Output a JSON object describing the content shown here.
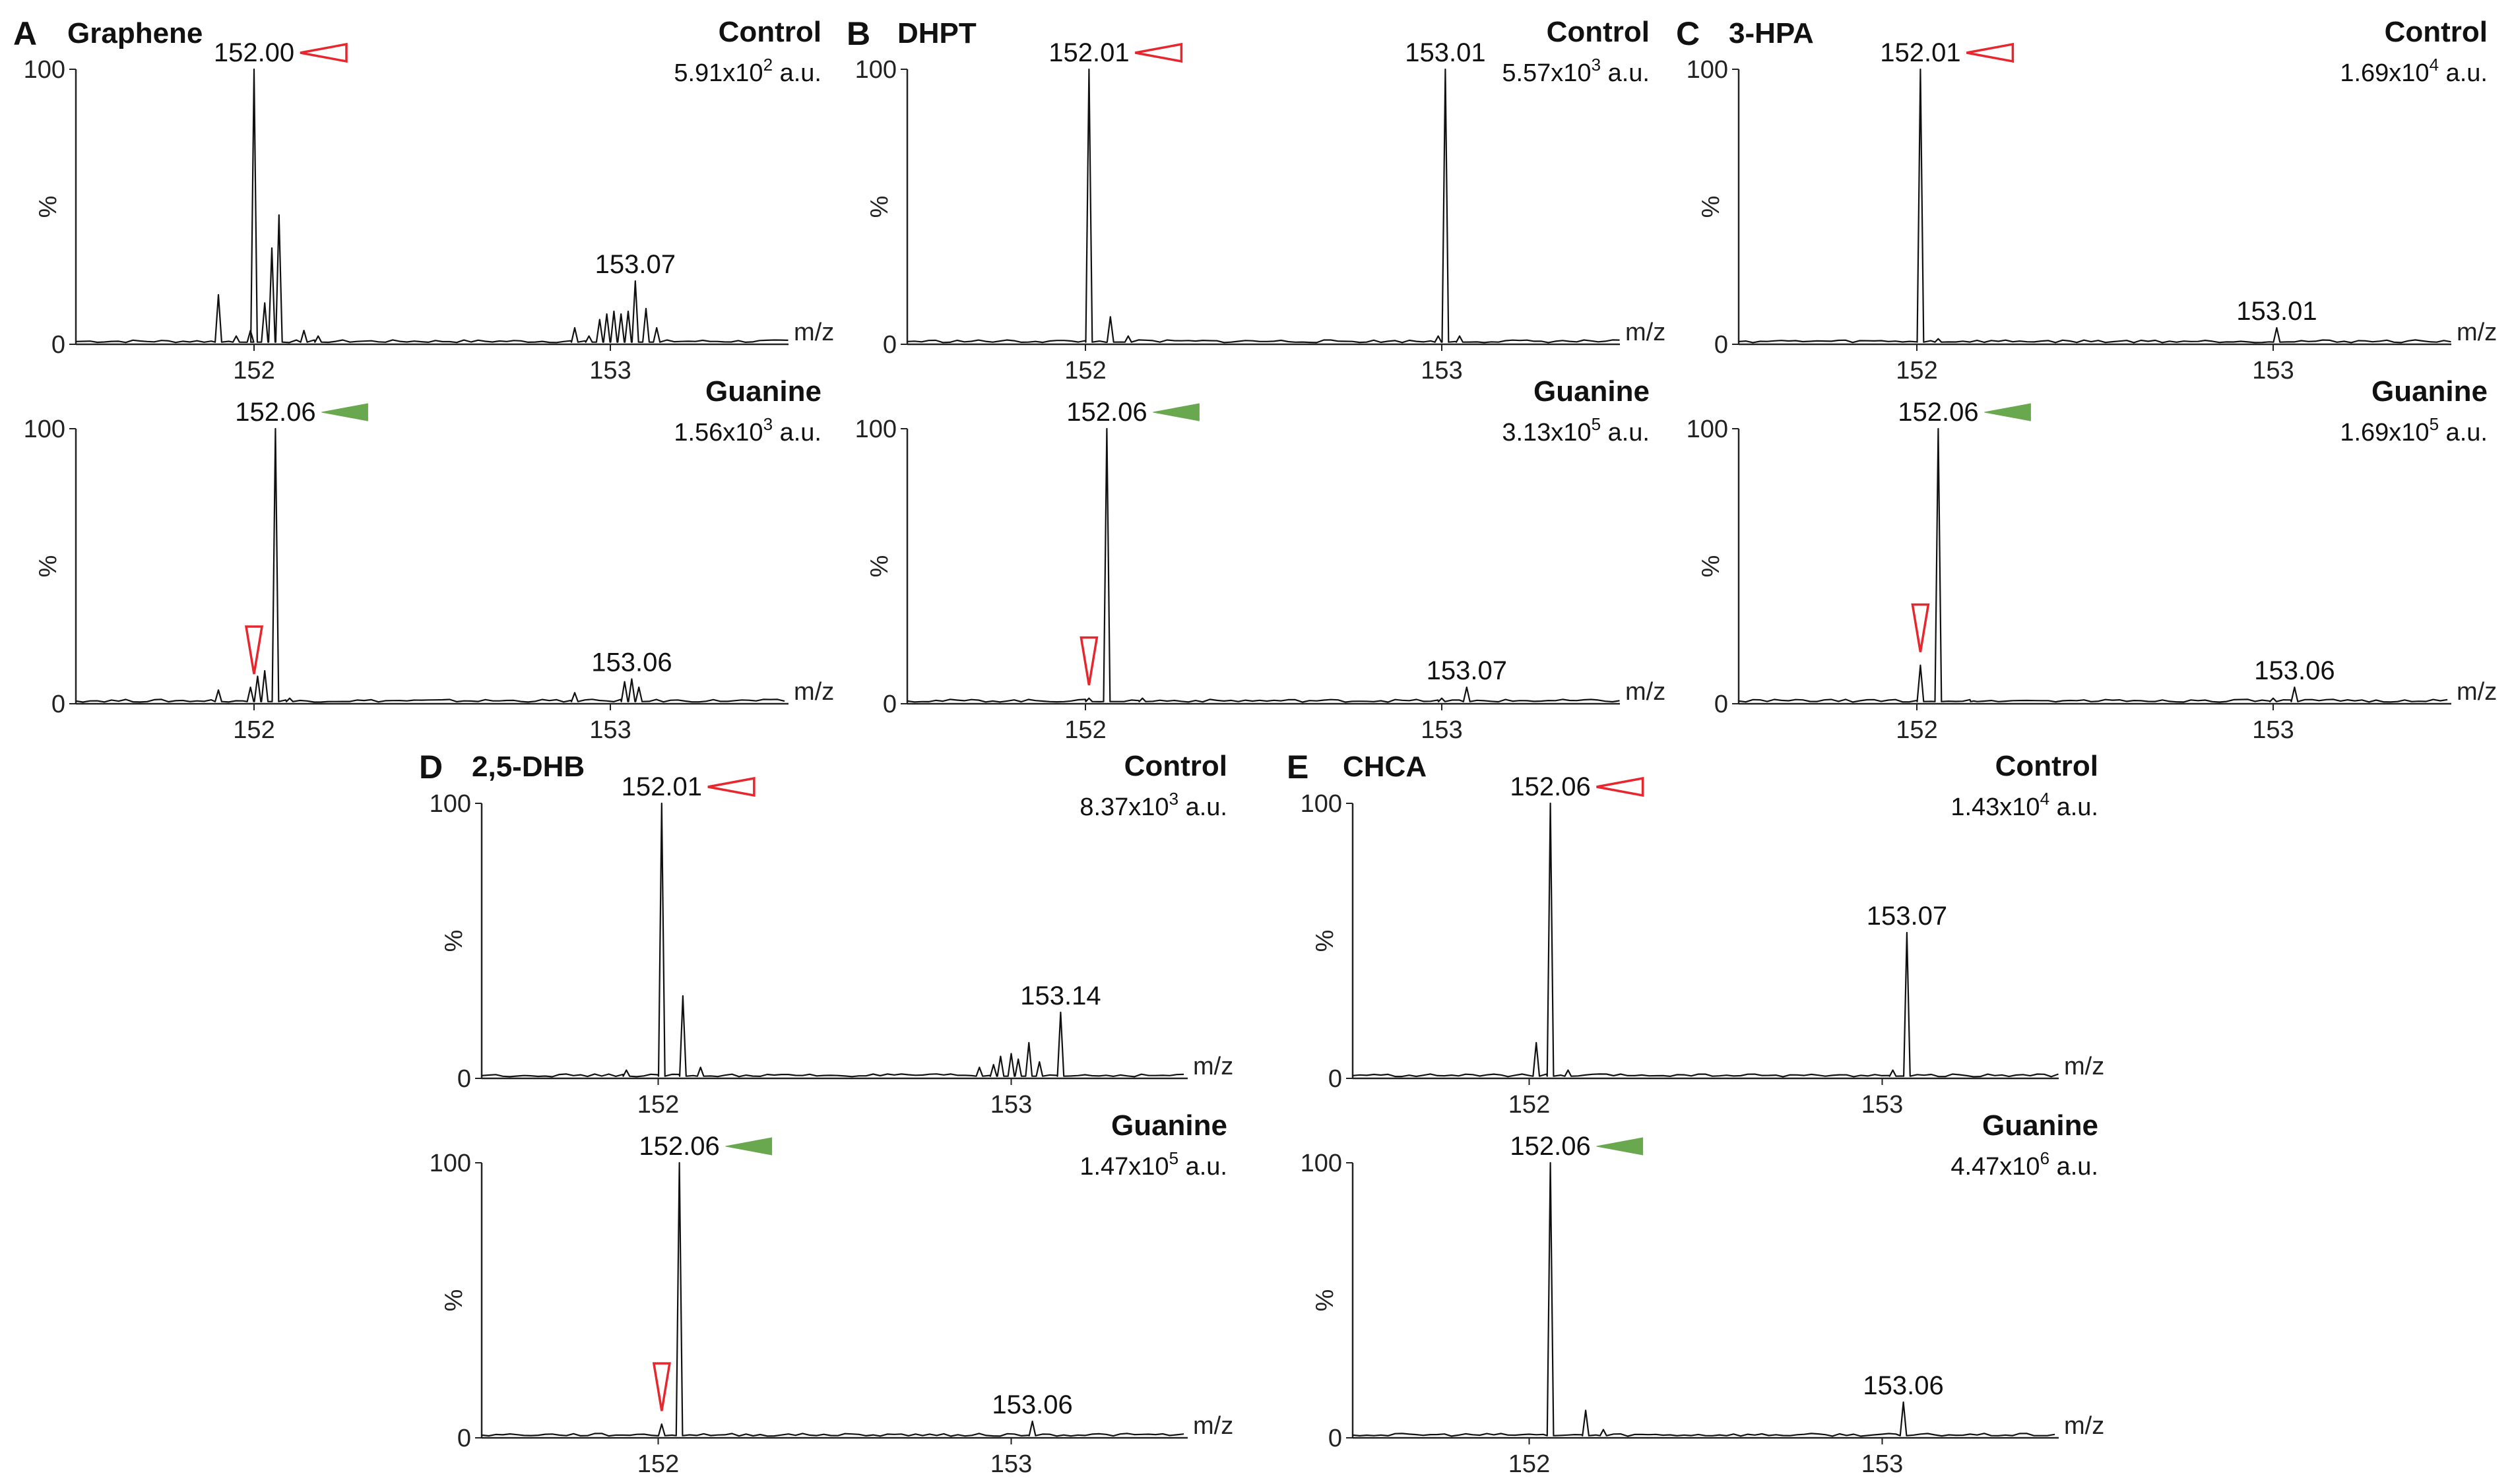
{
  "figure": {
    "x_axis_label": "m/z",
    "y_axis_label": "%",
    "intensity_unit": "a.u.",
    "y_ticks": [
      0,
      100
    ]
  },
  "panels": [
    {
      "letter": "A",
      "matrix": "Graphene"
    },
    {
      "letter": "B",
      "matrix": "DHPT"
    },
    {
      "letter": "C",
      "matrix": "3-HPA"
    },
    {
      "letter": "D",
      "matrix": "2,5-DHB"
    },
    {
      "letter": "E",
      "matrix": "CHCA"
    }
  ],
  "chart_data": [
    {
      "type": "line",
      "panel": "A",
      "matrix": "Graphene",
      "condition": "Control",
      "intensity_mantissa": "5.91x10",
      "intensity_exponent": "2",
      "x_ticks": [
        152,
        153
      ],
      "xlim": [
        151.5,
        153.5
      ],
      "ylim": [
        0,
        100
      ],
      "peaks": [
        [
          151.9,
          18
        ],
        [
          151.95,
          3
        ],
        [
          151.99,
          5
        ],
        [
          152.0,
          100
        ],
        [
          152.03,
          15
        ],
        [
          152.05,
          35
        ],
        [
          152.07,
          47
        ],
        [
          152.14,
          5
        ],
        [
          152.18,
          3
        ],
        [
          152.9,
          6
        ],
        [
          152.94,
          3
        ],
        [
          152.97,
          9
        ],
        [
          152.99,
          11
        ],
        [
          153.01,
          12
        ],
        [
          153.03,
          11
        ],
        [
          153.05,
          12
        ],
        [
          153.07,
          23
        ],
        [
          153.1,
          13
        ],
        [
          153.13,
          6
        ]
      ],
      "labels": [
        {
          "text": "152.00",
          "x": 152.0,
          "marker": "open"
        },
        {
          "text": "153.07",
          "x": 153.07
        }
      ]
    },
    {
      "type": "line",
      "panel": "A",
      "matrix": "Graphene",
      "condition": "Guanine",
      "intensity_mantissa": "1.56x10",
      "intensity_exponent": "3",
      "x_ticks": [
        152,
        153
      ],
      "xlim": [
        151.5,
        153.5
      ],
      "ylim": [
        0,
        100
      ],
      "peaks": [
        [
          151.9,
          5
        ],
        [
          151.99,
          6
        ],
        [
          152.01,
          10
        ],
        [
          152.03,
          12
        ],
        [
          152.06,
          100
        ],
        [
          152.1,
          2
        ],
        [
          152.9,
          4
        ],
        [
          153.04,
          8
        ],
        [
          153.06,
          9
        ],
        [
          153.08,
          6
        ]
      ],
      "labels": [
        {
          "text": "152.06",
          "x": 152.06,
          "marker": "filled"
        },
        {
          "text": "153.06",
          "x": 153.06
        },
        {
          "text": "",
          "x": 152.0,
          "marker": "down-open"
        }
      ]
    },
    {
      "type": "line",
      "panel": "B",
      "matrix": "DHPT",
      "condition": "Control",
      "intensity_mantissa": "5.57x10",
      "intensity_exponent": "3",
      "x_ticks": [
        152,
        153
      ],
      "xlim": [
        151.5,
        153.5
      ],
      "ylim": [
        0,
        100
      ],
      "peaks": [
        [
          152.01,
          100
        ],
        [
          152.07,
          10
        ],
        [
          152.12,
          3
        ],
        [
          152.99,
          3
        ],
        [
          153.01,
          100
        ],
        [
          153.05,
          3
        ]
      ],
      "labels": [
        {
          "text": "152.01",
          "x": 152.01,
          "marker": "open"
        },
        {
          "text": "153.01",
          "x": 153.01
        }
      ]
    },
    {
      "type": "line",
      "panel": "B",
      "matrix": "DHPT",
      "condition": "Guanine",
      "intensity_mantissa": "3.13x10",
      "intensity_exponent": "5",
      "x_ticks": [
        152,
        153
      ],
      "xlim": [
        151.5,
        153.5
      ],
      "ylim": [
        0,
        100
      ],
      "peaks": [
        [
          152.01,
          2
        ],
        [
          152.06,
          100
        ],
        [
          152.16,
          2
        ],
        [
          153.0,
          2
        ],
        [
          153.07,
          6
        ]
      ],
      "labels": [
        {
          "text": "152.06",
          "x": 152.06,
          "marker": "filled"
        },
        {
          "text": "153.07",
          "x": 153.07
        },
        {
          "text": "",
          "x": 152.01,
          "marker": "down-open"
        }
      ]
    },
    {
      "type": "line",
      "panel": "C",
      "matrix": "3-HPA",
      "condition": "Control",
      "intensity_mantissa": "1.69x10",
      "intensity_exponent": "4",
      "x_ticks": [
        152,
        153
      ],
      "xlim": [
        151.5,
        153.5
      ],
      "ylim": [
        0,
        100
      ],
      "peaks": [
        [
          152.01,
          100
        ],
        [
          152.06,
          2
        ],
        [
          153.01,
          6
        ]
      ],
      "labels": [
        {
          "text": "152.01",
          "x": 152.01,
          "marker": "open"
        },
        {
          "text": "153.01",
          "x": 153.01
        }
      ]
    },
    {
      "type": "line",
      "panel": "C",
      "matrix": "3-HPA",
      "condition": "Guanine",
      "intensity_mantissa": "1.69x10",
      "intensity_exponent": "5",
      "x_ticks": [
        152,
        153
      ],
      "xlim": [
        151.5,
        153.5
      ],
      "ylim": [
        0,
        100
      ],
      "peaks": [
        [
          152.01,
          14
        ],
        [
          152.06,
          100
        ],
        [
          152.16,
          1
        ],
        [
          153.0,
          2
        ],
        [
          153.06,
          6
        ]
      ],
      "labels": [
        {
          "text": "152.06",
          "x": 152.06,
          "marker": "filled"
        },
        {
          "text": "153.06",
          "x": 153.06
        },
        {
          "text": "",
          "x": 152.01,
          "marker": "down-open"
        }
      ]
    },
    {
      "type": "line",
      "panel": "D",
      "matrix": "2,5-DHB",
      "condition": "Control",
      "intensity_mantissa": "8.37x10",
      "intensity_exponent": "3",
      "x_ticks": [
        152,
        153
      ],
      "xlim": [
        151.5,
        153.5
      ],
      "ylim": [
        0,
        100
      ],
      "peaks": [
        [
          151.91,
          3
        ],
        [
          152.01,
          100
        ],
        [
          152.07,
          30
        ],
        [
          152.12,
          4
        ],
        [
          152.91,
          4
        ],
        [
          152.95,
          5
        ],
        [
          152.97,
          8
        ],
        [
          153.0,
          9
        ],
        [
          153.02,
          7
        ],
        [
          153.05,
          13
        ],
        [
          153.08,
          6
        ],
        [
          153.14,
          24
        ]
      ],
      "labels": [
        {
          "text": "152.01",
          "x": 152.01,
          "marker": "open"
        },
        {
          "text": "153.14",
          "x": 153.14
        }
      ]
    },
    {
      "type": "line",
      "panel": "D",
      "matrix": "2,5-DHB",
      "condition": "Guanine",
      "intensity_mantissa": "1.47x10",
      "intensity_exponent": "5",
      "x_ticks": [
        152,
        153
      ],
      "xlim": [
        151.5,
        153.5
      ],
      "ylim": [
        0,
        100
      ],
      "peaks": [
        [
          152.01,
          5
        ],
        [
          152.06,
          100
        ],
        [
          153.06,
          6
        ]
      ],
      "labels": [
        {
          "text": "152.06",
          "x": 152.06,
          "marker": "filled"
        },
        {
          "text": "153.06",
          "x": 153.06
        },
        {
          "text": "",
          "x": 152.01,
          "marker": "down-open"
        }
      ]
    },
    {
      "type": "line",
      "panel": "E",
      "matrix": "CHCA",
      "condition": "Control",
      "intensity_mantissa": "1.43x10",
      "intensity_exponent": "4",
      "x_ticks": [
        152,
        153
      ],
      "xlim": [
        151.5,
        153.5
      ],
      "ylim": [
        0,
        100
      ],
      "peaks": [
        [
          152.02,
          13
        ],
        [
          152.06,
          100
        ],
        [
          152.11,
          3
        ],
        [
          153.03,
          3
        ],
        [
          153.07,
          53
        ]
      ],
      "labels": [
        {
          "text": "152.06",
          "x": 152.06,
          "marker": "open"
        },
        {
          "text": "153.07",
          "x": 153.07
        }
      ]
    },
    {
      "type": "line",
      "panel": "E",
      "matrix": "CHCA",
      "condition": "Guanine",
      "intensity_mantissa": "4.47x10",
      "intensity_exponent": "6",
      "x_ticks": [
        152,
        153
      ],
      "xlim": [
        151.5,
        153.5
      ],
      "ylim": [
        0,
        100
      ],
      "peaks": [
        [
          152.06,
          100
        ],
        [
          152.16,
          10
        ],
        [
          152.21,
          3
        ],
        [
          153.06,
          13
        ]
      ],
      "labels": [
        {
          "text": "152.06",
          "x": 152.06,
          "marker": "filled"
        },
        {
          "text": "153.06",
          "x": 153.06
        }
      ]
    }
  ]
}
